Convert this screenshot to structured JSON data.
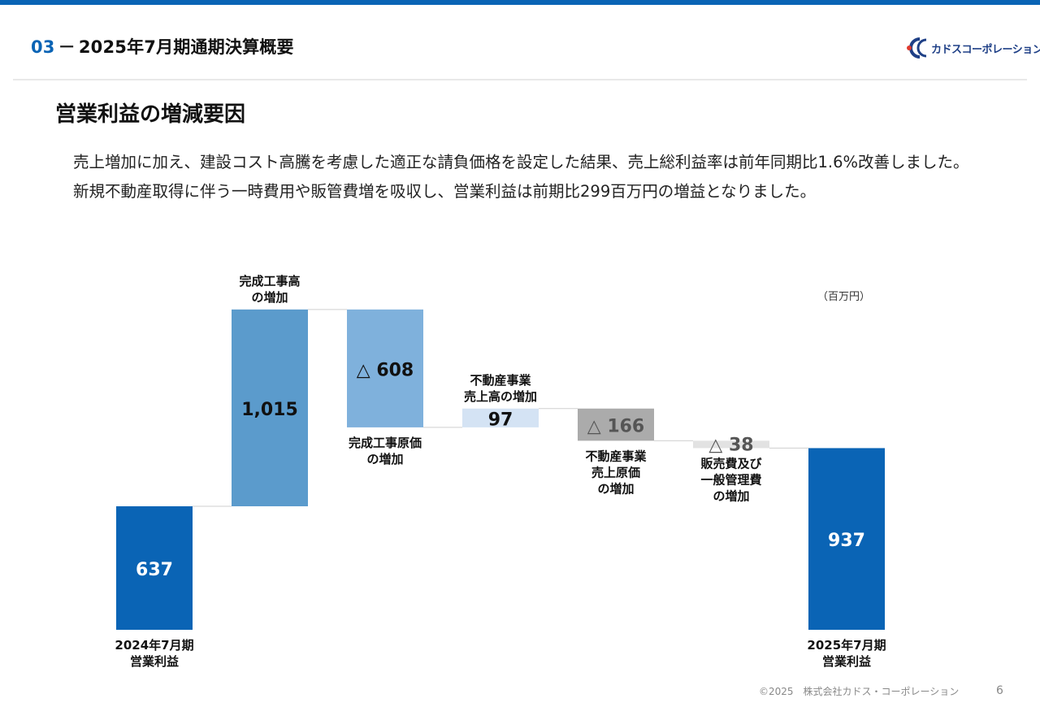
{
  "header": {
    "section_num": "03",
    "title": "2025年7月期通期決算概要"
  },
  "logo": {
    "text": "カドスコーポレーション"
  },
  "section_title": "営業利益の増減要因",
  "paragraphs": [
    "売上増加に加え、建設コスト高騰を考慮した適正な請負価格を設定した結果、売上総利益率は前年同期比1.6%改善しました。",
    "新規不動産取得に伴う一時費用や販管費増を吸収し、営業利益は前期比299百万円の増益となりました。"
  ],
  "footer": {
    "copyright": "©2025　株式会社カドス・コーポレーション",
    "page": "6"
  },
  "colors": {
    "brand": "#0a64b5",
    "total": "#0a64b5",
    "increase_main": "#5b9bcc",
    "decrease_main": "#7fb1dc",
    "increase_sub": "#d4e3f4",
    "decrease_sub": "#ababab",
    "decrease_minor": "#e2e2e2"
  },
  "chart_data": {
    "type": "waterfall",
    "unit": "（百万円）",
    "ylim": [
      0,
      1700
    ],
    "steps": [
      {
        "kind": "total",
        "value": 637,
        "label": "637",
        "caption": [
          "2024年7月期",
          "営業利益"
        ],
        "caption_pos": "below-bar",
        "color": "#0a64b5",
        "text_color": "#ffffff"
      },
      {
        "kind": "delta",
        "value": 1015,
        "label": "1,015",
        "caption": [
          "完成工事高",
          "の増加"
        ],
        "caption_pos": "above-bar",
        "color": "#5b9bcc",
        "text_color": "#111111"
      },
      {
        "kind": "delta",
        "value": -608,
        "label": "△ 608",
        "caption": [
          "完成工事原価",
          "の増加"
        ],
        "caption_pos": "below-bar",
        "color": "#7fb1dc",
        "text_color": "#111111"
      },
      {
        "kind": "delta",
        "value": 97,
        "label": "97",
        "caption": [
          "不動産事業",
          "売上高の増加"
        ],
        "caption_pos": "above-bar",
        "color": "#d4e3f4",
        "text_color": "#111111"
      },
      {
        "kind": "delta",
        "value": -166,
        "label": "△ 166",
        "caption": [
          "不動産事業",
          "売上原価",
          "の増加"
        ],
        "caption_pos": "below-bar",
        "color": "#ababab",
        "text_color": "#555555"
      },
      {
        "kind": "delta",
        "value": -38,
        "label": "△ 38",
        "caption": [
          "販売費及び",
          "一般管理費",
          "の増加"
        ],
        "caption_pos": "below-bar",
        "color": "#e2e2e2",
        "text_color": "#555555"
      },
      {
        "kind": "total",
        "value": 937,
        "label": "937",
        "caption": [
          "2025年7月期",
          "営業利益"
        ],
        "caption_pos": "below-bar",
        "color": "#0a64b5",
        "text_color": "#ffffff"
      }
    ]
  }
}
